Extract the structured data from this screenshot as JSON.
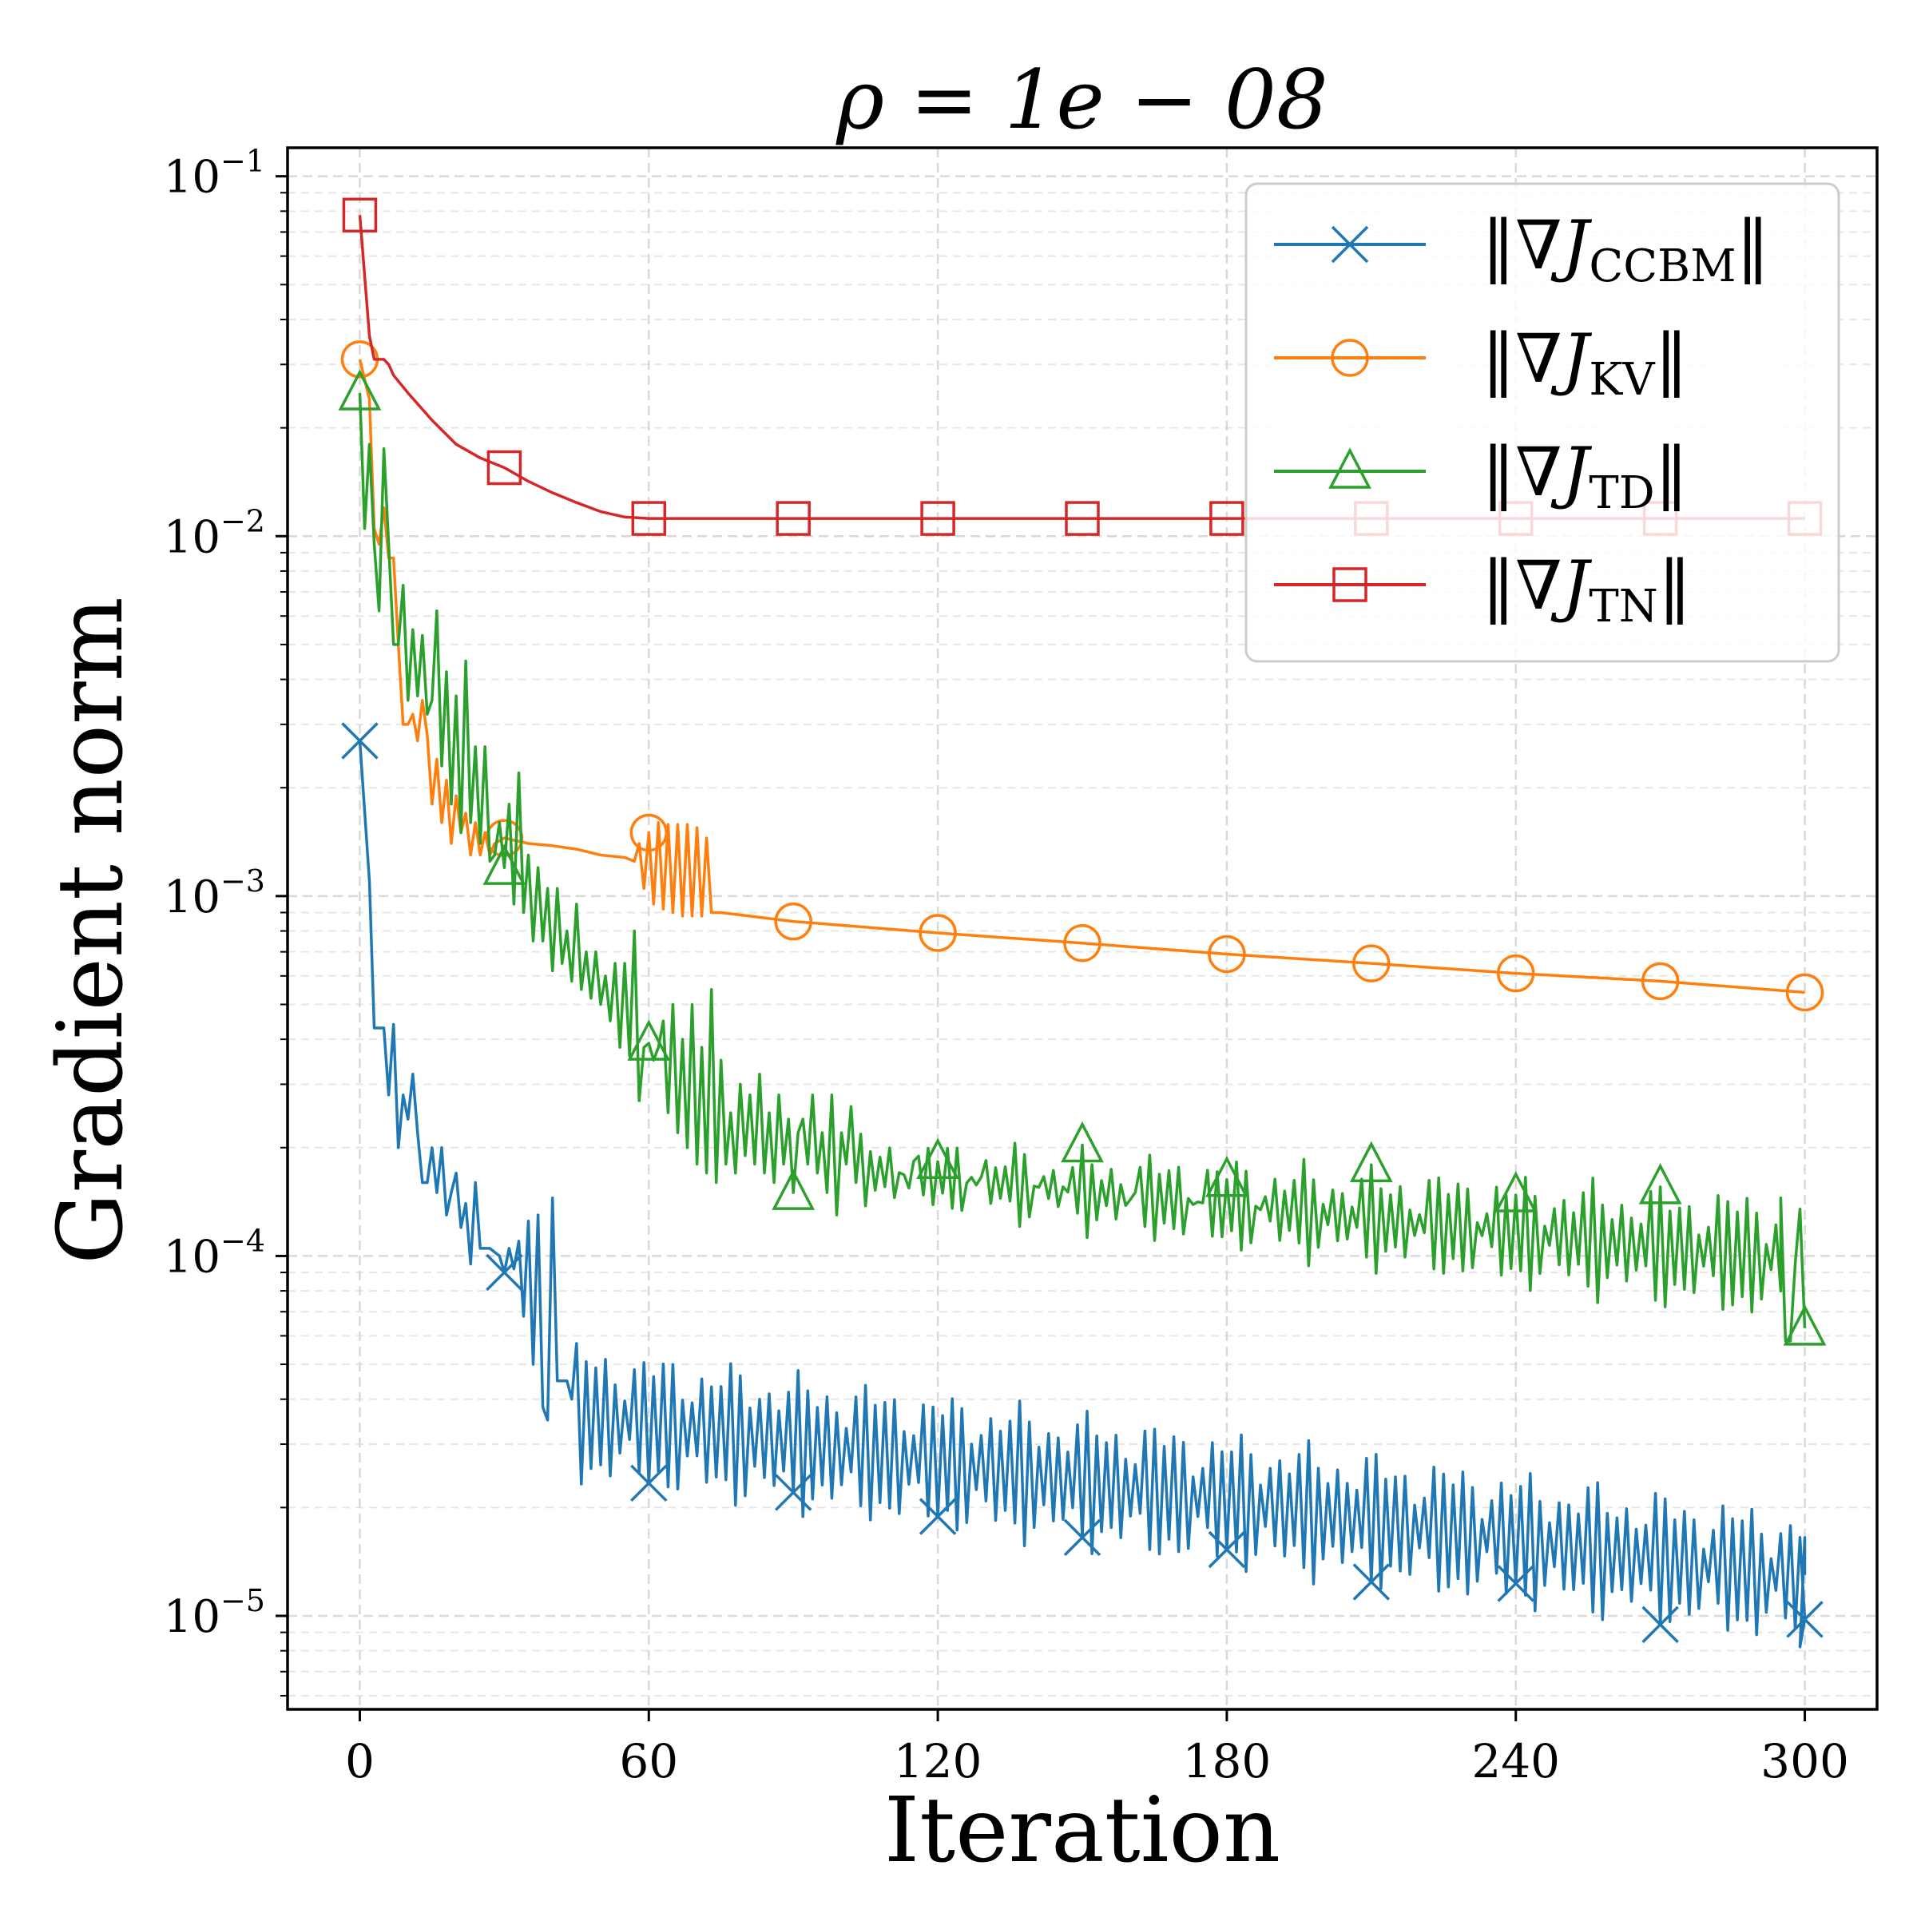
{
  "chart_data": {
    "type": "line",
    "title": "ρ = 1e − 08",
    "xlabel": "Iteration",
    "ylabel": "Gradient norm",
    "x_ticks": [
      0,
      60,
      120,
      180,
      240,
      300
    ],
    "x_tick_labels": [
      "0",
      "60",
      "120",
      "180",
      "240",
      "300"
    ],
    "xlim": [
      -15,
      315
    ],
    "yscale": "log",
    "ylim": [
      5.5e-06,
      0.12
    ],
    "y_ticks": [
      0.1,
      0.01,
      0.001,
      0.0001,
      1e-05
    ],
    "y_tick_labels": [
      {
        "base": "10",
        "exp": "−1"
      },
      {
        "base": "10",
        "exp": "−2"
      },
      {
        "base": "10",
        "exp": "−3"
      },
      {
        "base": "10",
        "exp": "−4"
      },
      {
        "base": "10",
        "exp": "−5"
      }
    ],
    "grid": true,
    "legend_position": "top-right",
    "series": [
      {
        "name": "‖∇J_CCBM‖",
        "legend_parts": {
          "pre": "‖∇",
          "var": "J",
          "sub": "CCBM",
          "post": "‖"
        },
        "color": "#1f77b4",
        "marker": "x",
        "marker_every": 30,
        "points": [
          [
            0,
            0.0027
          ],
          [
            2,
            0.0011
          ],
          [
            3,
            0.00043
          ],
          [
            5,
            0.00043
          ],
          [
            6,
            0.00028
          ],
          [
            7,
            0.00044
          ],
          [
            8,
            0.0002
          ],
          [
            9,
            0.00028
          ],
          [
            10,
            0.00024
          ],
          [
            11,
            0.00032
          ],
          [
            12,
            0.00022
          ],
          [
            13,
            0.00016
          ],
          [
            14,
            0.00016
          ],
          [
            15,
            0.0002
          ],
          [
            16,
            0.00015
          ],
          [
            17,
            0.0002
          ],
          [
            18,
            0.00013
          ],
          [
            19,
            0.00015
          ],
          [
            20,
            0.00017
          ],
          [
            21,
            0.00012
          ],
          [
            22,
            0.00014
          ],
          [
            23,
            9.5e-05
          ],
          [
            24,
            0.00016
          ],
          [
            25,
            0.000105
          ],
          [
            27,
            0.000105
          ],
          [
            29,
            0.0001
          ],
          [
            30,
            9e-05
          ],
          [
            31,
            0.000105
          ],
          [
            32,
            9.2e-05
          ],
          [
            33,
            0.00011
          ],
          [
            34,
            6.8e-05
          ],
          [
            35,
            0.000125
          ],
          [
            36,
            5e-05
          ],
          [
            37,
            0.00013
          ],
          [
            38,
            3.8e-05
          ],
          [
            39,
            3.5e-05
          ],
          [
            40,
            0.000145
          ],
          [
            41,
            4.5e-05
          ],
          [
            43,
            4.5e-05
          ],
          [
            44,
            4e-05
          ]
        ],
        "pattern": {
          "x_start": 44,
          "x_end": 300,
          "period": 2,
          "upper": [
            5e-05,
            1.7e-05
          ],
          "lower": [
            2.7e-05,
            9.5e-06
          ]
        },
        "tail": [
          [
            299,
            8.2e-06
          ],
          [
            300,
            1.65e-05
          ],
          [
            300,
            1.3e-05
          ]
        ]
      },
      {
        "name": "‖∇J_KV‖",
        "legend_parts": {
          "pre": "‖∇",
          "var": "J",
          "sub": "KV",
          "post": "‖"
        },
        "color": "#ff7f0e",
        "marker": "o",
        "marker_every": 30,
        "points": [
          [
            0,
            0.031
          ],
          [
            2,
            0.024
          ],
          [
            3,
            0.0105
          ],
          [
            4,
            0.0095
          ],
          [
            5,
            0.012
          ],
          [
            6,
            0.0087
          ],
          [
            7,
            0.0087
          ],
          [
            8,
            0.005
          ],
          [
            9,
            0.003
          ],
          [
            10,
            0.003
          ],
          [
            11,
            0.0032
          ],
          [
            12,
            0.0027
          ],
          [
            13,
            0.0035
          ],
          [
            14,
            0.0028
          ],
          [
            15,
            0.0018
          ],
          [
            16,
            0.0024
          ],
          [
            17,
            0.0016
          ],
          [
            18,
            0.0021
          ],
          [
            19,
            0.0014
          ],
          [
            20,
            0.0019
          ],
          [
            21,
            0.0015
          ],
          [
            22,
            0.0017
          ],
          [
            23,
            0.0013
          ],
          [
            24,
            0.0016
          ],
          [
            25,
            0.0013
          ],
          [
            26,
            0.0015
          ],
          [
            27,
            0.0013
          ],
          [
            28,
            0.0014
          ],
          [
            30,
            0.00145
          ],
          [
            35,
            0.0014
          ],
          [
            40,
            0.00138
          ],
          [
            45,
            0.00135
          ],
          [
            50,
            0.0013
          ],
          [
            55,
            0.00128
          ],
          [
            57,
            0.00125
          ],
          [
            58,
            0.0014
          ],
          [
            59,
            0.00105
          ],
          [
            60,
            0.0015
          ],
          [
            61,
            0.00095
          ],
          [
            62,
            0.0016
          ],
          [
            63,
            0.00092
          ],
          [
            64,
            0.00158
          ],
          [
            65,
            0.0009
          ],
          [
            66,
            0.00158
          ],
          [
            67,
            0.00088
          ],
          [
            68,
            0.00158
          ],
          [
            69,
            0.00088
          ],
          [
            70,
            0.00155
          ],
          [
            71,
            0.00088
          ],
          [
            72,
            0.00145
          ],
          [
            73,
            0.0009
          ],
          [
            75,
            0.0009
          ],
          [
            90,
            0.00085
          ],
          [
            120,
            0.00079
          ],
          [
            150,
            0.00074
          ],
          [
            180,
            0.00069
          ],
          [
            210,
            0.00065
          ],
          [
            240,
            0.00061
          ],
          [
            270,
            0.00058
          ],
          [
            300,
            0.00054
          ]
        ]
      },
      {
        "name": "‖∇J_TD‖",
        "legend_parts": {
          "pre": "‖∇",
          "var": "J",
          "sub": "TD",
          "post": "‖"
        },
        "color": "#2ca02c",
        "marker": "^",
        "marker_every": 30,
        "points": [
          [
            0,
            0.025
          ],
          [
            1,
            0.0105
          ],
          [
            2,
            0.018
          ],
          [
            3,
            0.0095
          ],
          [
            4,
            0.0062
          ],
          [
            5,
            0.0175
          ],
          [
            6,
            0.0095
          ],
          [
            7,
            0.005
          ],
          [
            8,
            0.005
          ],
          [
            9,
            0.0073
          ],
          [
            10,
            0.0035
          ],
          [
            11,
            0.0055
          ],
          [
            12,
            0.0036
          ],
          [
            13,
            0.0053
          ],
          [
            14,
            0.0032
          ],
          [
            15,
            0.0035
          ],
          [
            16,
            0.0062
          ],
          [
            17,
            0.0023
          ],
          [
            18,
            0.0042
          ],
          [
            19,
            0.0018
          ],
          [
            20,
            0.0036
          ],
          [
            21,
            0.0015
          ],
          [
            22,
            0.0045
          ],
          [
            23,
            0.0016
          ],
          [
            24,
            0.0026
          ],
          [
            25,
            0.0014
          ],
          [
            26,
            0.0026
          ],
          [
            27,
            0.00125
          ],
          [
            28,
            0.0013
          ],
          [
            29,
            0.0016
          ],
          [
            30,
            0.0012
          ],
          [
            31,
            0.0018
          ],
          [
            32,
            0.00095
          ],
          [
            33,
            0.0022
          ],
          [
            34,
            0.0009
          ],
          [
            35,
            0.0013
          ],
          [
            36,
            0.00075
          ],
          [
            37,
            0.0012
          ],
          [
            38,
            0.00075
          ],
          [
            39,
            0.00105
          ],
          [
            40,
            0.00062
          ],
          [
            41,
            0.00105
          ],
          [
            42,
            0.00065
          ],
          [
            43,
            0.0008
          ],
          [
            44,
            0.00058
          ],
          [
            45,
            0.00095
          ],
          [
            46,
            0.00055
          ],
          [
            47,
            0.0007
          ],
          [
            48,
            0.00052
          ],
          [
            49,
            0.0007
          ],
          [
            50,
            0.0005
          ],
          [
            51,
            0.0006
          ],
          [
            52,
            0.00045
          ],
          [
            53,
            0.00065
          ],
          [
            54,
            0.00038
          ],
          [
            55,
            0.00065
          ],
          [
            56,
            0.00036
          ],
          [
            57,
            0.0008
          ],
          [
            58,
            0.00027
          ],
          [
            59,
            0.00038
          ],
          [
            60,
            0.00039
          ],
          [
            61,
            0.00035
          ],
          [
            62,
            0.00038
          ],
          [
            63,
            0.00045
          ],
          [
            64,
            0.00025
          ],
          [
            65,
            0.0005
          ],
          [
            66,
            0.00022
          ],
          [
            67,
            0.0004
          ],
          [
            68,
            0.0002
          ],
          [
            69,
            0.0005
          ],
          [
            70,
            0.00018
          ],
          [
            71,
            0.00038
          ],
          [
            72,
            0.00017
          ],
          [
            73,
            0.00055
          ],
          [
            74,
            0.00016
          ],
          [
            75,
            0.00035
          ],
          [
            76,
            0.00018
          ],
          [
            77,
            0.00025
          ],
          [
            78,
            0.00017
          ],
          [
            79,
            0.0003
          ],
          [
            80,
            0.00019
          ],
          [
            81,
            0.00028
          ],
          [
            82,
            0.00018
          ],
          [
            83,
            0.00032
          ],
          [
            84,
            0.00017
          ],
          [
            85,
            0.00025
          ],
          [
            86,
            0.00016
          ],
          [
            87,
            0.00028
          ],
          [
            88,
            0.00018
          ],
          [
            89,
            0.00024
          ],
          [
            90,
            0.00015
          ],
          [
            91,
            0.00022
          ],
          [
            92,
            0.00024
          ],
          [
            93,
            0.00018
          ],
          [
            94,
            0.00028
          ],
          [
            95,
            0.00017
          ],
          [
            96,
            0.00022
          ],
          [
            97,
            0.00015
          ],
          [
            98,
            0.00028
          ],
          [
            99,
            0.00013
          ],
          [
            100,
            0.00022
          ],
          [
            101,
            0.00018
          ],
          [
            102,
            0.00026
          ],
          [
            103,
            0.00016
          ]
        ],
        "pattern": {
          "x_start": 103,
          "x_end": 295,
          "period": 2,
          "upper": [
            0.00019,
            0.00013
          ],
          "lower": [
            0.00016,
            7.5e-05
          ]
        },
        "tail": [
          [
            295,
            0.000145
          ],
          [
            296,
            5.8e-05
          ],
          [
            297,
            5.8e-05
          ],
          [
            298,
            9.5e-05
          ],
          [
            299,
            0.000135
          ],
          [
            300,
            6.3e-05
          ]
        ]
      },
      {
        "name": "‖∇J_TN‖",
        "legend_parts": {
          "pre": "‖∇",
          "var": "J",
          "sub": "TN",
          "post": "‖"
        },
        "color": "#d62728",
        "marker": "s",
        "marker_every": 30,
        "points": [
          [
            0,
            0.078
          ],
          [
            2,
            0.036
          ],
          [
            3,
            0.031
          ],
          [
            5,
            0.031
          ],
          [
            6,
            0.03
          ],
          [
            7,
            0.028
          ],
          [
            10,
            0.025
          ],
          [
            15,
            0.021
          ],
          [
            20,
            0.018
          ],
          [
            25,
            0.0165
          ],
          [
            30,
            0.0155
          ],
          [
            35,
            0.0142
          ],
          [
            40,
            0.0132
          ],
          [
            45,
            0.0124
          ],
          [
            50,
            0.0117
          ],
          [
            55,
            0.0113
          ],
          [
            60,
            0.0112
          ],
          [
            90,
            0.0112
          ],
          [
            120,
            0.0112
          ],
          [
            150,
            0.0112
          ],
          [
            180,
            0.0112
          ],
          [
            210,
            0.0112
          ],
          [
            240,
            0.0112
          ],
          [
            270,
            0.0112
          ],
          [
            300,
            0.0112
          ]
        ]
      }
    ]
  }
}
